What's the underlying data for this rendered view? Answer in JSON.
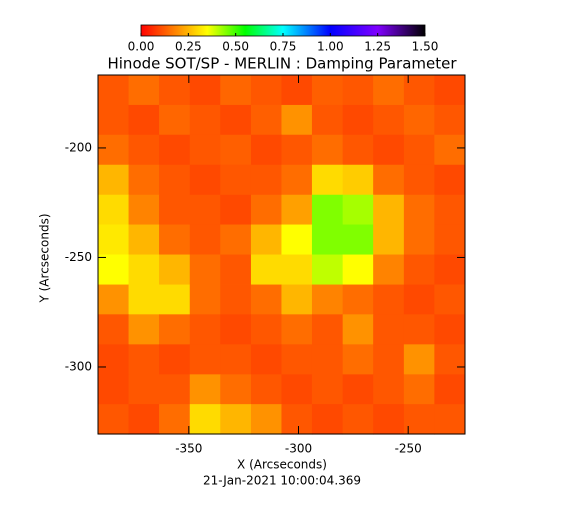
{
  "chart_data": {
    "type": "heatmap",
    "title": "Hinode SOT/SP - MERLIN : Damping Parameter",
    "x_label": "X (Arcseconds)",
    "y_label": "Y (Arcseconds)",
    "footer": "21-Jan-2021 10:00:04.369",
    "x": [
      -384.4,
      -370.5,
      -356.6,
      -342.6,
      -328.7,
      -314.7,
      -300.8,
      -286.9,
      -272.9,
      -259.0,
      -245.0,
      -231.1
    ],
    "y": [
      -173.5,
      -187.2,
      -200.8,
      -214.5,
      -228.2,
      -241.8,
      -255.5,
      -269.2,
      -282.8,
      -296.5,
      -310.2,
      -323.8
    ],
    "z": [
      [
        0.12,
        0.15,
        0.12,
        0.1,
        0.14,
        0.12,
        0.1,
        0.13,
        0.12,
        0.15,
        0.12,
        0.1
      ],
      [
        0.12,
        0.1,
        0.14,
        0.12,
        0.1,
        0.13,
        0.2,
        0.12,
        0.1,
        0.12,
        0.14,
        0.12
      ],
      [
        0.15,
        0.12,
        0.1,
        0.12,
        0.13,
        0.1,
        0.12,
        0.15,
        0.12,
        0.1,
        0.12,
        0.15
      ],
      [
        0.25,
        0.15,
        0.12,
        0.1,
        0.12,
        0.12,
        0.15,
        0.3,
        0.28,
        0.15,
        0.12,
        0.1
      ],
      [
        0.3,
        0.18,
        0.12,
        0.12,
        0.1,
        0.15,
        0.22,
        0.45,
        0.42,
        0.25,
        0.15,
        0.12
      ],
      [
        0.32,
        0.25,
        0.15,
        0.12,
        0.15,
        0.25,
        0.35,
        0.45,
        0.45,
        0.25,
        0.15,
        0.12
      ],
      [
        0.35,
        0.3,
        0.25,
        0.15,
        0.12,
        0.3,
        0.3,
        0.4,
        0.35,
        0.18,
        0.12,
        0.1
      ],
      [
        0.2,
        0.3,
        0.3,
        0.15,
        0.12,
        0.15,
        0.25,
        0.18,
        0.15,
        0.12,
        0.1,
        0.12
      ],
      [
        0.12,
        0.2,
        0.15,
        0.12,
        0.1,
        0.12,
        0.15,
        0.12,
        0.2,
        0.12,
        0.12,
        0.1
      ],
      [
        0.1,
        0.12,
        0.1,
        0.12,
        0.12,
        0.1,
        0.12,
        0.12,
        0.15,
        0.12,
        0.2,
        0.12
      ],
      [
        0.1,
        0.12,
        0.12,
        0.2,
        0.15,
        0.12,
        0.1,
        0.12,
        0.1,
        0.12,
        0.15,
        0.1
      ],
      [
        0.12,
        0.1,
        0.15,
        0.3,
        0.25,
        0.2,
        0.12,
        0.1,
        0.12,
        0.1,
        0.12,
        0.12
      ]
    ],
    "xlim": [
      -391.4,
      -224.1
    ],
    "ylim": [
      -330.6,
      -166.7
    ],
    "xticks": [
      -350,
      -300,
      -250
    ],
    "yticks": [
      -300,
      -250,
      -200
    ],
    "colorscale": [
      [
        0,
        "#ff0000"
      ],
      [
        0.35,
        "#ffff00"
      ],
      [
        0.55,
        "#00ff00"
      ],
      [
        0.75,
        "#00ffff"
      ],
      [
        1.0,
        "#0000ff"
      ],
      [
        1.25,
        "#8000ff"
      ],
      [
        1.5,
        "#000000"
      ]
    ],
    "clim": [
      0,
      1.5
    ],
    "cticks": [
      {
        "value": 0,
        "label": "0.00"
      },
      {
        "value": 0.25,
        "label": "0.25"
      },
      {
        "value": 0.5,
        "label": "0.50"
      },
      {
        "value": 0.75,
        "label": "0.75"
      },
      {
        "value": 1.0,
        "label": "1.00"
      },
      {
        "value": 1.25,
        "label": "1.25"
      },
      {
        "value": 1.5,
        "label": "1.50"
      }
    ]
  }
}
